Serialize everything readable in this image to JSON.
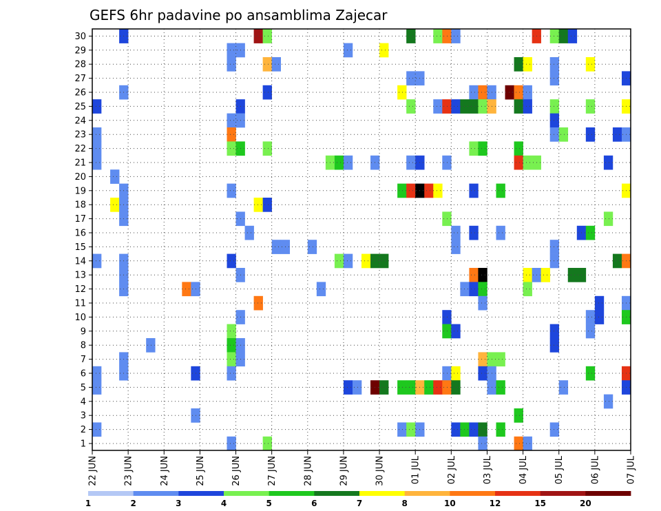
{
  "chart_data": {
    "type": "heatmap",
    "title": "GEFS 6hr padavine po ansamblima Zajecar",
    "xlabel": "",
    "ylabel": "",
    "x_tick_labels": [
      "22 JUN",
      "23 JUN",
      "24 JUN",
      "25 JUN",
      "26 JUN",
      "27 JUN",
      "28 JUN",
      "29 JUN",
      "30 JUN",
      "01 JUL",
      "02 JUL",
      "03 JUL",
      "04 JUL",
      "05 JUL",
      "06 JUL",
      "07 JUL"
    ],
    "x_unit": "6-hour steps from 22 JUN 00z",
    "xlim": [
      0,
      60
    ],
    "y_tick_labels": [
      "1",
      "2",
      "3",
      "4",
      "5",
      "6",
      "7",
      "8",
      "9",
      "10",
      "11",
      "12",
      "13",
      "14",
      "15",
      "16",
      "17",
      "18",
      "19",
      "20",
      "21",
      "22",
      "23",
      "24",
      "25",
      "26",
      "27",
      "28",
      "29",
      "30"
    ],
    "ylim": [
      0,
      30
    ],
    "grid": true,
    "legend_position": "bottom",
    "color_levels": [
      1,
      2,
      3,
      4,
      5,
      6,
      7,
      8,
      10,
      12,
      15,
      20
    ],
    "colors": [
      "#b4c8f5",
      "#5f8cf0",
      "#1e46dc",
      "#78f050",
      "#1ec81e",
      "#14781e",
      "#ffff00",
      "#ffb43c",
      "#ff7814",
      "#e63214",
      "#a01414",
      "#6e0000"
    ],
    "cells": [
      [
        3,
        30,
        2
      ],
      [
        18,
        30,
        10
      ],
      [
        19,
        30,
        3
      ],
      [
        35,
        30,
        5
      ],
      [
        38,
        30,
        3
      ],
      [
        39,
        30,
        8
      ],
      [
        40,
        30,
        1
      ],
      [
        49,
        30,
        9
      ],
      [
        51,
        30,
        3
      ],
      [
        52,
        30,
        5
      ],
      [
        53,
        30,
        2
      ],
      [
        15,
        29,
        1
      ],
      [
        16,
        29,
        1
      ],
      [
        28,
        29,
        1
      ],
      [
        32,
        29,
        6
      ],
      [
        15,
        28,
        1
      ],
      [
        19,
        28,
        7
      ],
      [
        20,
        28,
        1
      ],
      [
        47,
        28,
        5
      ],
      [
        48,
        28,
        6
      ],
      [
        51,
        28,
        1
      ],
      [
        55,
        28,
        6
      ],
      [
        35,
        27,
        1
      ],
      [
        36,
        27,
        1
      ],
      [
        51,
        27,
        1
      ],
      [
        59,
        27,
        2
      ],
      [
        3,
        26,
        1
      ],
      [
        19,
        26,
        2
      ],
      [
        34,
        26,
        6
      ],
      [
        42,
        26,
        1
      ],
      [
        43,
        26,
        8
      ],
      [
        44,
        26,
        1
      ],
      [
        46,
        26,
        11
      ],
      [
        47,
        26,
        8
      ],
      [
        48,
        26,
        1
      ],
      [
        0,
        25,
        2
      ],
      [
        16,
        25,
        2
      ],
      [
        35,
        25,
        3
      ],
      [
        38,
        25,
        1
      ],
      [
        39,
        25,
        9
      ],
      [
        40,
        25,
        2
      ],
      [
        41,
        25,
        5
      ],
      [
        42,
        25,
        5
      ],
      [
        43,
        25,
        3
      ],
      [
        44,
        25,
        7
      ],
      [
        47,
        25,
        5
      ],
      [
        48,
        25,
        2
      ],
      [
        51,
        25,
        3
      ],
      [
        55,
        25,
        3
      ],
      [
        59,
        25,
        6
      ],
      [
        15,
        24,
        1
      ],
      [
        16,
        24,
        1
      ],
      [
        51,
        24,
        2
      ],
      [
        0,
        23,
        1
      ],
      [
        15,
        23,
        8
      ],
      [
        51,
        23,
        1
      ],
      [
        52,
        23,
        3
      ],
      [
        55,
        23,
        2
      ],
      [
        58,
        23,
        2
      ],
      [
        59,
        23,
        1
      ],
      [
        0,
        22,
        1
      ],
      [
        15,
        22,
        3
      ],
      [
        16,
        22,
        4
      ],
      [
        19,
        22,
        3
      ],
      [
        42,
        22,
        3
      ],
      [
        43,
        22,
        4
      ],
      [
        47,
        22,
        4
      ],
      [
        0,
        21,
        1
      ],
      [
        26,
        21,
        3
      ],
      [
        27,
        21,
        4
      ],
      [
        28,
        21,
        1
      ],
      [
        31,
        21,
        1
      ],
      [
        35,
        21,
        1
      ],
      [
        36,
        21,
        2
      ],
      [
        39,
        21,
        1
      ],
      [
        47,
        21,
        9
      ],
      [
        48,
        21,
        3
      ],
      [
        49,
        21,
        3
      ],
      [
        57,
        21,
        2
      ],
      [
        2,
        20,
        1
      ],
      [
        3,
        19,
        1
      ],
      [
        15,
        19,
        1
      ],
      [
        34,
        19,
        4
      ],
      [
        35,
        19,
        9
      ],
      [
        36,
        19,
        12
      ],
      [
        37,
        19,
        9
      ],
      [
        38,
        19,
        6
      ],
      [
        42,
        19,
        2
      ],
      [
        45,
        19,
        4
      ],
      [
        59,
        19,
        6
      ],
      [
        2,
        18,
        6
      ],
      [
        3,
        18,
        1
      ],
      [
        18,
        18,
        6
      ],
      [
        19,
        18,
        2
      ],
      [
        3,
        17,
        1
      ],
      [
        16,
        17,
        1
      ],
      [
        39,
        17,
        3
      ],
      [
        57,
        17,
        3
      ],
      [
        17,
        16,
        1
      ],
      [
        40,
        16,
        1
      ],
      [
        42,
        16,
        2
      ],
      [
        45,
        16,
        1
      ],
      [
        54,
        16,
        2
      ],
      [
        55,
        16,
        4
      ],
      [
        20,
        15,
        1
      ],
      [
        21,
        15,
        1
      ],
      [
        24,
        15,
        1
      ],
      [
        40,
        15,
        1
      ],
      [
        51,
        15,
        1
      ],
      [
        0,
        14,
        1
      ],
      [
        3,
        14,
        1
      ],
      [
        15,
        14,
        2
      ],
      [
        27,
        14,
        3
      ],
      [
        28,
        14,
        1
      ],
      [
        30,
        14,
        6
      ],
      [
        31,
        14,
        5
      ],
      [
        32,
        14,
        5
      ],
      [
        51,
        14,
        1
      ],
      [
        58,
        14,
        5
      ],
      [
        59,
        14,
        8
      ],
      [
        3,
        13,
        1
      ],
      [
        16,
        13,
        1
      ],
      [
        42,
        13,
        8
      ],
      [
        43,
        13,
        12
      ],
      [
        48,
        13,
        6
      ],
      [
        49,
        13,
        1
      ],
      [
        50,
        13,
        6
      ],
      [
        53,
        13,
        5
      ],
      [
        54,
        13,
        5
      ],
      [
        3,
        12,
        1
      ],
      [
        10,
        12,
        8
      ],
      [
        11,
        12,
        1
      ],
      [
        25,
        12,
        1
      ],
      [
        41,
        12,
        1
      ],
      [
        42,
        12,
        2
      ],
      [
        43,
        12,
        4
      ],
      [
        48,
        12,
        3
      ],
      [
        18,
        11,
        8
      ],
      [
        43,
        11,
        1
      ],
      [
        56,
        11,
        2
      ],
      [
        59,
        11,
        1
      ],
      [
        16,
        10,
        1
      ],
      [
        39,
        10,
        2
      ],
      [
        55,
        10,
        1
      ],
      [
        56,
        10,
        2
      ],
      [
        59,
        10,
        4
      ],
      [
        15,
        9,
        3
      ],
      [
        39,
        9,
        4
      ],
      [
        40,
        9,
        2
      ],
      [
        51,
        9,
        2
      ],
      [
        55,
        9,
        1
      ],
      [
        6,
        8,
        1
      ],
      [
        15,
        8,
        4
      ],
      [
        16,
        8,
        1
      ],
      [
        51,
        8,
        2
      ],
      [
        3,
        7,
        1
      ],
      [
        15,
        7,
        3
      ],
      [
        16,
        7,
        1
      ],
      [
        43,
        7,
        7
      ],
      [
        44,
        7,
        3
      ],
      [
        45,
        7,
        3
      ],
      [
        0,
        6,
        1
      ],
      [
        3,
        6,
        1
      ],
      [
        11,
        6,
        2
      ],
      [
        15,
        6,
        1
      ],
      [
        39,
        6,
        1
      ],
      [
        40,
        6,
        6
      ],
      [
        43,
        6,
        2
      ],
      [
        44,
        6,
        1
      ],
      [
        55,
        6,
        4
      ],
      [
        59,
        6,
        9
      ],
      [
        0,
        5,
        1
      ],
      [
        28,
        5,
        2
      ],
      [
        29,
        5,
        1
      ],
      [
        31,
        5,
        11
      ],
      [
        32,
        5,
        5
      ],
      [
        34,
        5,
        4
      ],
      [
        35,
        5,
        4
      ],
      [
        36,
        5,
        7
      ],
      [
        37,
        5,
        4
      ],
      [
        38,
        5,
        9
      ],
      [
        39,
        5,
        8
      ],
      [
        40,
        5,
        5
      ],
      [
        44,
        5,
        1
      ],
      [
        45,
        5,
        4
      ],
      [
        52,
        5,
        1
      ],
      [
        59,
        5,
        2
      ],
      [
        57,
        4,
        1
      ],
      [
        11,
        3,
        1
      ],
      [
        47,
        3,
        4
      ],
      [
        0,
        2,
        1
      ],
      [
        34,
        2,
        1
      ],
      [
        35,
        2,
        3
      ],
      [
        36,
        2,
        1
      ],
      [
        40,
        2,
        2
      ],
      [
        41,
        2,
        4
      ],
      [
        42,
        2,
        2
      ],
      [
        43,
        2,
        5
      ],
      [
        45,
        2,
        4
      ],
      [
        51,
        2,
        1
      ],
      [
        15,
        1,
        1
      ],
      [
        19,
        1,
        3
      ],
      [
        43,
        1,
        1
      ],
      [
        47,
        1,
        8
      ],
      [
        48,
        1,
        1
      ]
    ],
    "cell_format": "[x_step, member, color_level_index]"
  }
}
